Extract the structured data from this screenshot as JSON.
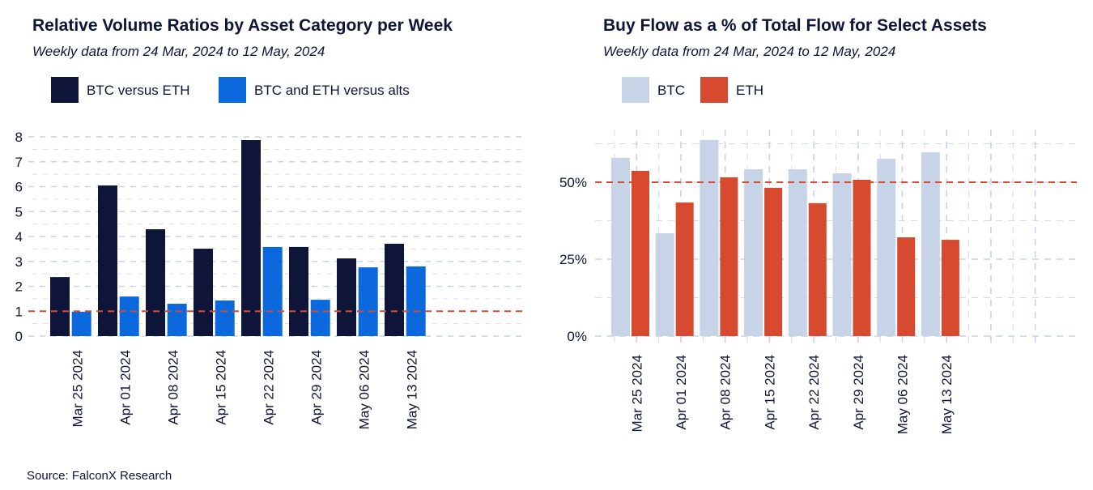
{
  "source": "Source: FalconX Research",
  "colors": {
    "navy": "#0f1538",
    "blue": "#0b69dd",
    "light": "#c7d3e6",
    "red": "#d84a30",
    "grid": "#c9d3e5"
  },
  "chart_data": [
    {
      "type": "bar",
      "title": "Relative Volume Ratios by Asset Category per Week",
      "subtitle": "Weekly data from 24 Mar, 2024 to 12 May, 2024",
      "categories": [
        "Mar 25 2024",
        "Apr 01 2024",
        "Apr 08 2024",
        "Apr 15 2024",
        "Apr 22 2024",
        "Apr 29 2024",
        "May 06 2024",
        "May 13 2024"
      ],
      "series": [
        {
          "name": "BTC versus ETH",
          "color": "#0f1538",
          "values": [
            2.37,
            6.05,
            4.29,
            3.51,
            7.87,
            3.58,
            3.12,
            3.71
          ]
        },
        {
          "name": "BTC and ETH versus alts",
          "color": "#0b69dd",
          "values": [
            0.98,
            1.59,
            1.3,
            1.43,
            3.58,
            1.46,
            2.76,
            2.8
          ]
        }
      ],
      "yticks": [
        "0",
        "1",
        "2",
        "3",
        "4",
        "5",
        "6",
        "7",
        "8"
      ],
      "ylim": [
        0,
        8
      ],
      "reference_line": 1,
      "legend": "top-left",
      "grid": true
    },
    {
      "type": "bar",
      "title": "Buy Flow as a % of Total Flow for Select Assets",
      "subtitle": "Weekly data from 24 Mar, 2024 to 12 May, 2024",
      "categories": [
        "Mar 25 2024",
        "Apr 01 2024",
        "Apr 08 2024",
        "Apr 15 2024",
        "Apr 22 2024",
        "Apr 29 2024",
        "May 06 2024",
        "May 13 2024"
      ],
      "series": [
        {
          "name": "BTC",
          "color": "#c7d3e6",
          "values": [
            57.9,
            33.4,
            63.7,
            54.2,
            54.2,
            52.9,
            57.6,
            59.7
          ]
        },
        {
          "name": "ETH",
          "color": "#d84a30",
          "values": [
            53.7,
            43.4,
            51.6,
            48.2,
            43.2,
            50.8,
            32.1,
            31.3
          ]
        }
      ],
      "yticks": [
        "0%",
        "25%",
        "50%"
      ],
      "ylim": [
        0,
        65
      ],
      "reference_line": 50,
      "legend": "top-left",
      "grid": true
    }
  ]
}
